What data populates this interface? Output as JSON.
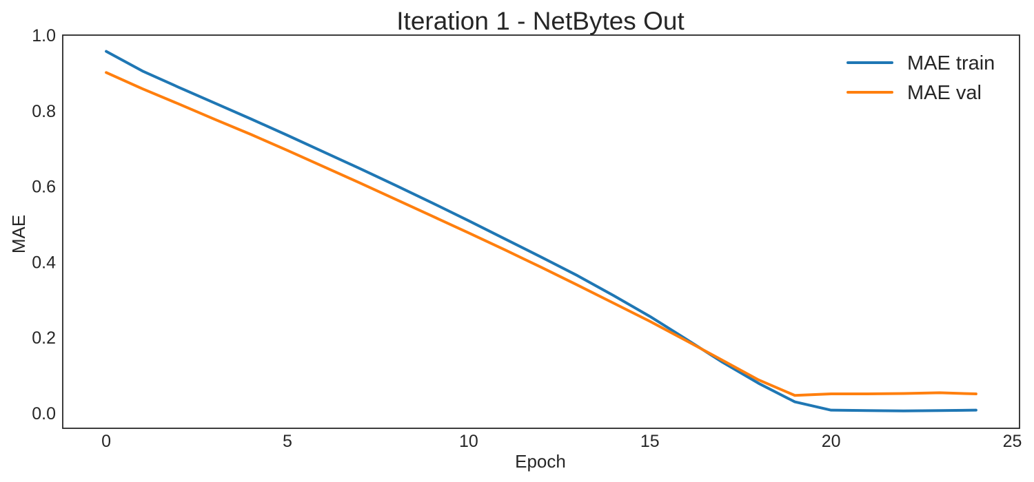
{
  "chart_data": {
    "type": "line",
    "title": "Iteration 1 - NetBytes Out",
    "xlabel": "Epoch",
    "ylabel": "MAE",
    "xlim": [
      -1.2,
      25.2
    ],
    "ylim": [
      -0.04,
      1.0
    ],
    "xticks": [
      0,
      5,
      10,
      15,
      20,
      25
    ],
    "yticks": [
      0.0,
      0.2,
      0.4,
      0.6,
      0.8,
      1.0
    ],
    "xtick_labels": [
      "0",
      "5",
      "10",
      "15",
      "20",
      "25"
    ],
    "ytick_labels": [
      "0.0",
      "0.2",
      "0.4",
      "0.6",
      "0.8",
      "1.0"
    ],
    "grid": false,
    "legend_position": "top-right",
    "x": [
      0,
      1,
      2,
      3,
      4,
      5,
      6,
      7,
      8,
      9,
      10,
      11,
      12,
      13,
      14,
      15,
      16,
      17,
      18,
      19,
      20,
      21,
      22,
      23,
      24
    ],
    "series": [
      {
        "name": "MAE train",
        "color": "#1f77b4",
        "values": [
          0.957,
          0.905,
          0.862,
          0.82,
          0.778,
          0.735,
          0.691,
          0.647,
          0.602,
          0.556,
          0.509,
          0.461,
          0.413,
          0.364,
          0.311,
          0.256,
          0.196,
          0.135,
          0.079,
          0.03,
          0.008,
          0.007,
          0.006,
          0.007,
          0.008
        ]
      },
      {
        "name": "MAE val",
        "color": "#ff7f0e",
        "values": [
          0.901,
          0.858,
          0.818,
          0.777,
          0.737,
          0.695,
          0.652,
          0.609,
          0.565,
          0.521,
          0.477,
          0.432,
          0.386,
          0.339,
          0.291,
          0.243,
          0.192,
          0.14,
          0.088,
          0.047,
          0.051,
          0.051,
          0.052,
          0.054,
          0.051
        ]
      }
    ]
  }
}
